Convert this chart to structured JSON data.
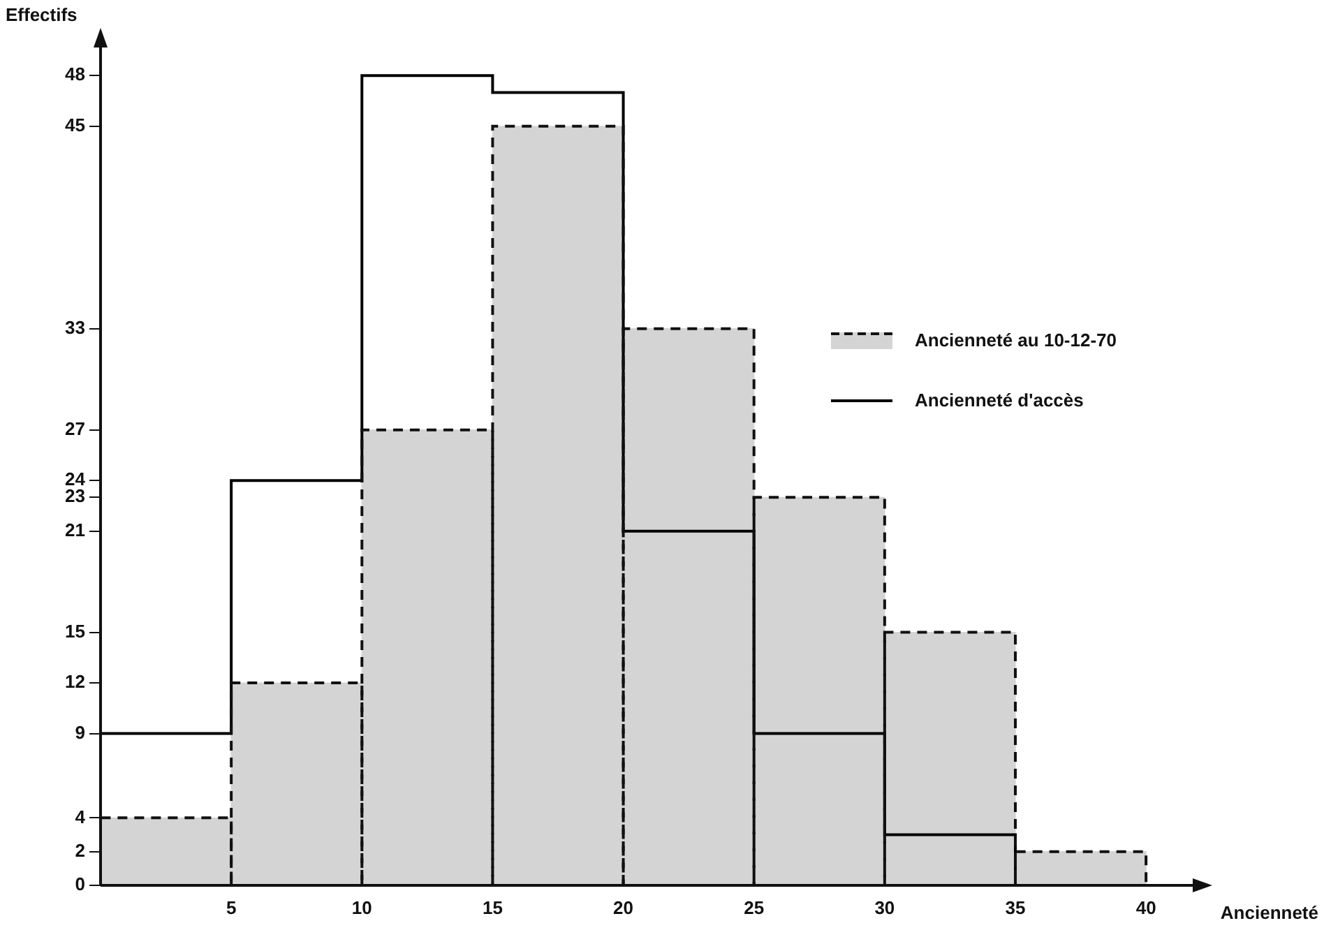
{
  "chart_data": {
    "type": "histogram",
    "xlabel": "Ancienneté",
    "ylabel": "Effectifs",
    "bins": [
      0,
      5,
      10,
      15,
      20,
      25,
      30,
      35,
      40
    ],
    "series": [
      {
        "name": "Ancienneté au 10-12-70",
        "color": "#d4d4d4",
        "line_style": "dashed",
        "values": [
          4,
          12,
          27,
          45,
          33,
          23,
          15,
          2
        ]
      },
      {
        "name": "Ancienneté d'accès",
        "type": "step",
        "color": "#000000",
        "line_style": "solid",
        "x": [
          0,
          5,
          10,
          15,
          20,
          25,
          30,
          35
        ],
        "values": [
          9,
          24,
          48,
          47,
          21,
          9,
          3,
          0
        ]
      }
    ],
    "xlim": [
      0,
      42
    ],
    "xticks": [
      5,
      10,
      15,
      20,
      25,
      30,
      35,
      40
    ],
    "ylim": [
      0,
      50
    ],
    "yticks": [
      0,
      2,
      4,
      9,
      12,
      15,
      21,
      23,
      24,
      27,
      33,
      45,
      48
    ],
    "grid": false,
    "legend": "right"
  }
}
